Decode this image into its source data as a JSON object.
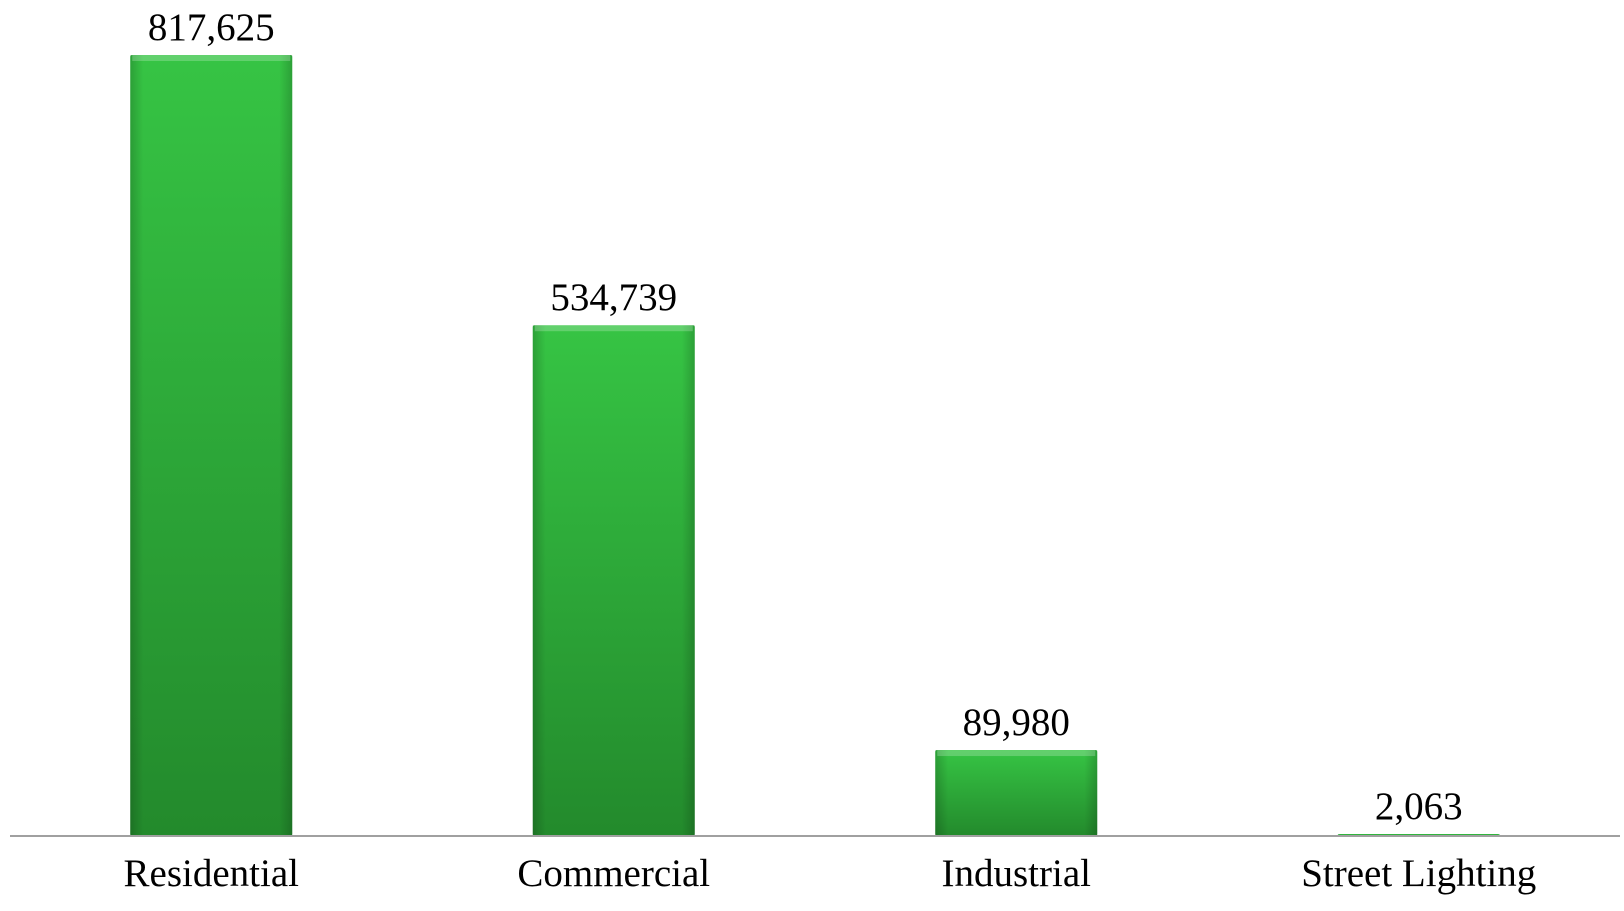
{
  "chart_data": {
    "type": "bar",
    "categories": [
      "Residential",
      "Commercial",
      "Industrial",
      "Street Lighting"
    ],
    "values": [
      817625,
      534739,
      89980,
      2063
    ],
    "value_labels": [
      "817,625",
      "534,739",
      "89,980",
      "2,063"
    ],
    "title": "",
    "xlabel": "",
    "ylabel": "",
    "ylim": [
      0,
      817625
    ],
    "grid": false,
    "legend": "none",
    "bar_color": "#2fae3a",
    "bar_color_light": "#36c444",
    "bar_color_dark": "#238a2c",
    "axis_color": "#a0a0a0"
  }
}
